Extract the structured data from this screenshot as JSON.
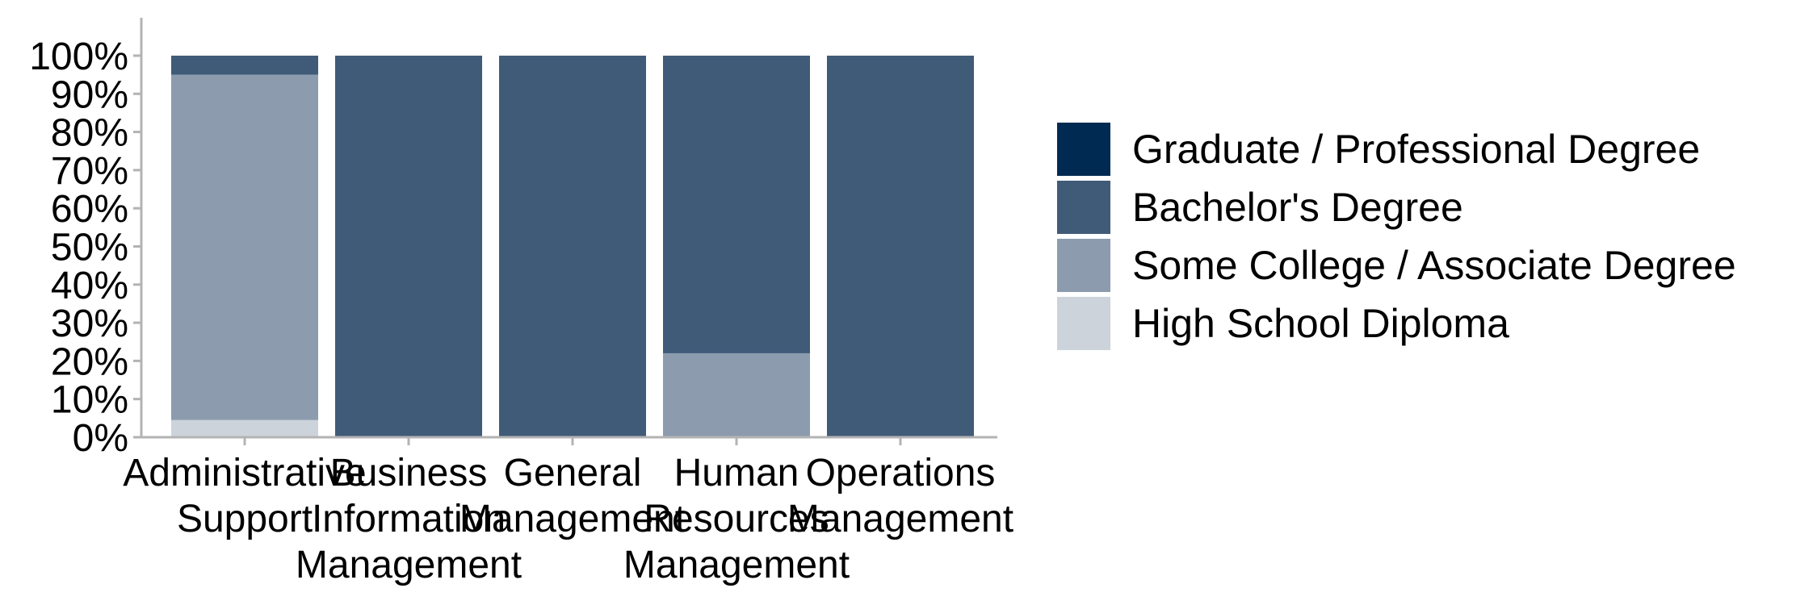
{
  "chart_data": {
    "type": "bar",
    "stacked": true,
    "percent": true,
    "categories": [
      [
        "Administrative",
        "Support"
      ],
      [
        "Business",
        "Information",
        "Management"
      ],
      [
        "General",
        "Management"
      ],
      [
        "Human",
        "Resources",
        "Management"
      ],
      [
        "Operations",
        "Management"
      ]
    ],
    "series": [
      {
        "name": "High School Diploma",
        "color": "#ccd3db",
        "values": [
          4.5,
          0,
          0,
          0,
          0
        ]
      },
      {
        "name": "Some College / Associate Degree",
        "color": "#8c9cae",
        "values": [
          90.5,
          0,
          0,
          22,
          0
        ]
      },
      {
        "name": "Bachelor's Degree",
        "color": "#405b78",
        "values": [
          5,
          100,
          100,
          78,
          100
        ]
      },
      {
        "name": "Graduate / Professional Degree",
        "color": "#002a52",
        "values": [
          0,
          0,
          0,
          0,
          0
        ]
      }
    ],
    "legend_order": [
      "Graduate / Professional Degree",
      "Bachelor's Degree",
      "Some College / Associate Degree",
      "High School Diploma"
    ],
    "y_ticks": [
      "0%",
      "10%",
      "20%",
      "30%",
      "40%",
      "50%",
      "60%",
      "70%",
      "80%",
      "90%",
      "100%"
    ],
    "ylim": [
      0,
      100
    ],
    "title": "",
    "xlabel": "",
    "ylabel": "",
    "grid": false,
    "legend_position": "right"
  }
}
